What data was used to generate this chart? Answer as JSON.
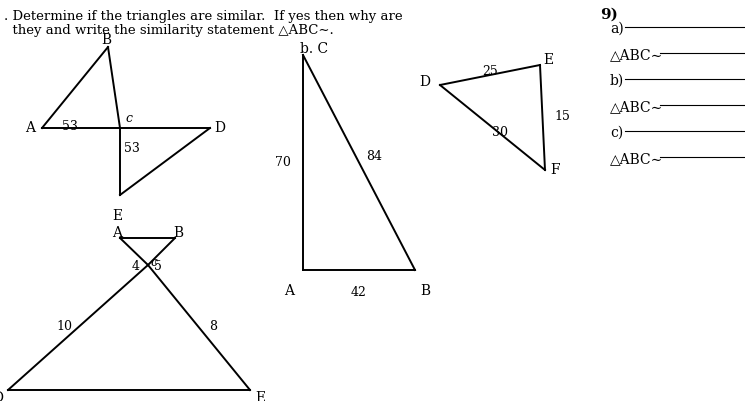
{
  "background_color": "#ffffff",
  "title_line1": ". Determine if the triangles are similar.  If yes then why are",
  "title_line2": "  they and write the similarity statement △ABC∼.",
  "problem_number": "9)",
  "label_a": "a)",
  "label_b": "b)",
  "label_c": "c)",
  "dabc_sim": "△ABC∼",
  "fig_width": 7.45,
  "fig_height": 4.01,
  "dpi": 100
}
